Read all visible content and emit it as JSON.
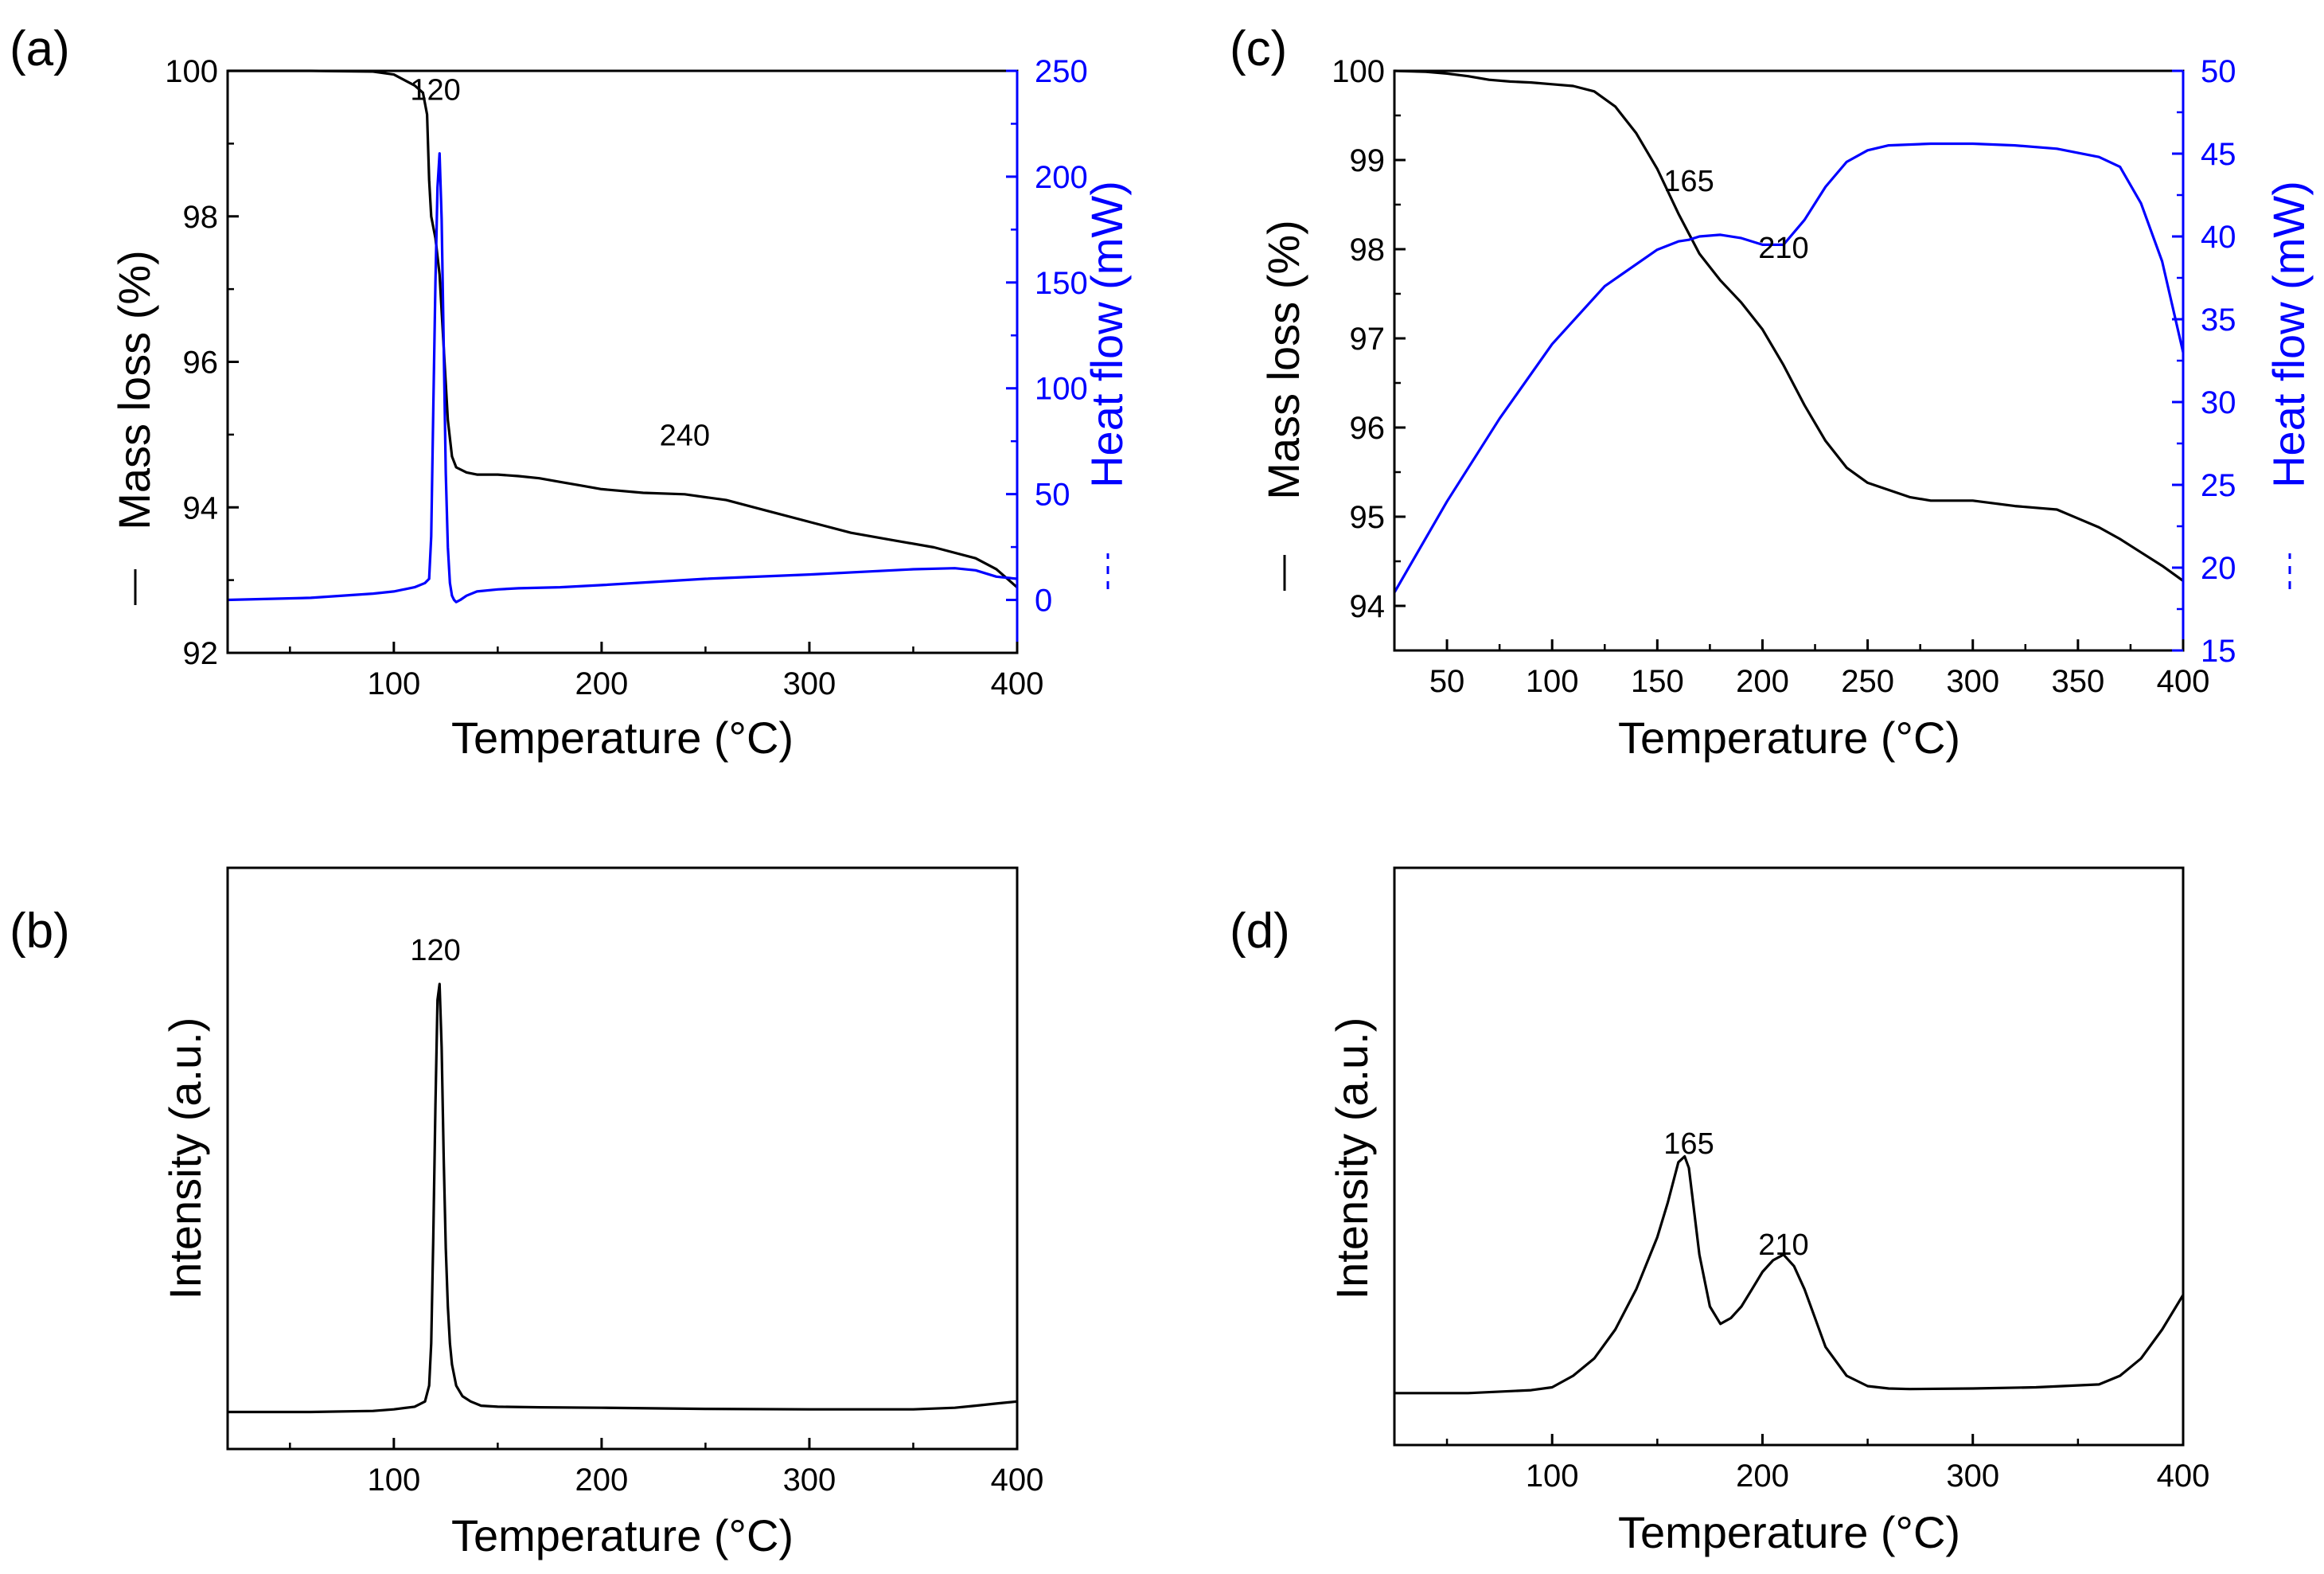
{
  "figure": {
    "panels": [
      {
        "id": "a",
        "label": "(a)",
        "annotations": [
          {
            "text": "120",
            "x": 120,
            "y": 99.6,
            "axis": "left"
          },
          {
            "text": "240",
            "x": 240,
            "y": 94.85,
            "axis": "left"
          }
        ],
        "left_axis_label": "Mass loss (%)",
        "right_axis_label": "Heat flow (mW)",
        "xlabel": "Temperature (°C)"
      },
      {
        "id": "b",
        "label": "(b)",
        "annotations": [
          {
            "text": "120",
            "x": 120,
            "y": 9.25
          }
        ],
        "ylabel": "Intensity (a.u.)",
        "xlabel": "Temperature (°C)"
      },
      {
        "id": "c",
        "label": "(c)",
        "annotations": [
          {
            "text": "165",
            "x": 165,
            "y": 98.65,
            "axis": "left"
          },
          {
            "text": "210",
            "x": 210,
            "y": 97.9,
            "axis": "left"
          }
        ],
        "left_axis_label": "Mass loss (%)",
        "right_axis_label": "Heat flow (mW)",
        "xlabel": "Temperature (°C)"
      },
      {
        "id": "d",
        "label": "(d)",
        "annotations": [
          {
            "text": "165",
            "x": 165,
            "y": 5.05
          },
          {
            "text": "210",
            "x": 210,
            "y": 3.3
          }
        ],
        "ylabel": "Intensity (a.u.)",
        "xlabel": "Temperature (°C)"
      }
    ]
  },
  "chart_data": [
    {
      "panel": "a",
      "type": "line",
      "title": "",
      "xlabel": "Temperature (°C)",
      "ylabel": "Mass loss (%)",
      "y2label": "Heat flow (mW)",
      "xlim": [
        20,
        400
      ],
      "ylim": [
        92,
        100
      ],
      "y2lim": [
        -25,
        250
      ],
      "xticks": [
        100,
        200,
        300,
        400
      ],
      "yticks": [
        92,
        94,
        96,
        98,
        100
      ],
      "y2ticks": [
        0,
        50,
        100,
        150,
        200,
        250
      ],
      "series": [
        {
          "name": "Mass loss",
          "axis": "left",
          "color": "#000000",
          "style": "solid",
          "x": [
            20,
            60,
            90,
            100,
            110,
            114,
            116,
            117,
            118,
            120,
            122,
            124,
            126,
            128,
            130,
            135,
            140,
            150,
            160,
            170,
            180,
            190,
            200,
            220,
            240,
            260,
            280,
            300,
            320,
            340,
            360,
            380,
            390,
            400
          ],
          "y": [
            100,
            100,
            99.99,
            99.95,
            99.8,
            99.7,
            99.4,
            98.5,
            98.0,
            97.7,
            97.2,
            96.2,
            95.2,
            94.7,
            94.55,
            94.48,
            94.45,
            94.45,
            94.43,
            94.4,
            94.35,
            94.3,
            94.25,
            94.2,
            94.18,
            94.1,
            93.95,
            93.8,
            93.65,
            93.55,
            93.45,
            93.3,
            93.15,
            92.9
          ]
        },
        {
          "name": "Heat flow",
          "axis": "right",
          "color": "#0000ff",
          "style": "solid",
          "x": [
            20,
            60,
            90,
            100,
            110,
            115,
            117,
            118,
            119,
            120,
            121,
            122,
            123,
            124,
            125,
            126,
            127,
            128,
            129,
            130,
            132,
            135,
            140,
            150,
            160,
            180,
            200,
            250,
            300,
            350,
            370,
            380,
            390,
            400
          ],
          "y": [
            0,
            1,
            3,
            4,
            6,
            8,
            10,
            30,
            90,
            150,
            195,
            211,
            180,
            120,
            60,
            25,
            8,
            2,
            0,
            -1,
            0,
            2,
            4,
            5,
            5.5,
            6,
            7,
            10,
            12,
            14.5,
            15,
            14,
            11,
            10
          ]
        }
      ]
    },
    {
      "panel": "b",
      "type": "line",
      "title": "",
      "xlabel": "Temperature (°C)",
      "ylabel": "Intensity (a.u.)",
      "xlim": [
        20,
        400
      ],
      "ylim": [
        0,
        11
      ],
      "xticks": [
        100,
        200,
        300,
        400
      ],
      "series": [
        {
          "name": "Intensity",
          "color": "#000000",
          "style": "solid",
          "x": [
            20,
            60,
            90,
            100,
            110,
            115,
            117,
            118,
            119,
            120,
            121,
            122,
            123,
            124,
            125,
            126,
            127,
            128,
            130,
            133,
            137,
            142,
            150,
            170,
            200,
            250,
            300,
            350,
            370,
            380,
            390,
            400
          ],
          "y": [
            0.7,
            0.7,
            0.72,
            0.75,
            0.8,
            0.9,
            1.2,
            2.0,
            4.0,
            6.5,
            8.5,
            8.8,
            7.6,
            5.5,
            3.8,
            2.7,
            2.0,
            1.6,
            1.2,
            1.0,
            0.9,
            0.82,
            0.8,
            0.79,
            0.78,
            0.76,
            0.75,
            0.75,
            0.78,
            0.82,
            0.86,
            0.9
          ]
        }
      ]
    },
    {
      "panel": "c",
      "type": "line",
      "title": "",
      "xlabel": "Temperature (°C)",
      "ylabel": "Mass loss (%)",
      "y2label": "Heat flow (mW)",
      "xlim": [
        25,
        400
      ],
      "ylim": [
        93.5,
        100
      ],
      "y2lim": [
        15,
        50
      ],
      "xticks": [
        50,
        100,
        150,
        200,
        250,
        300,
        350,
        400
      ],
      "yticks": [
        94,
        95,
        96,
        97,
        98,
        99,
        100
      ],
      "y2ticks": [
        15,
        20,
        25,
        30,
        35,
        40,
        45,
        50
      ],
      "series": [
        {
          "name": "Mass loss",
          "axis": "left",
          "color": "#000000",
          "style": "solid",
          "x": [
            25,
            40,
            50,
            60,
            70,
            80,
            90,
            100,
            110,
            120,
            130,
            140,
            150,
            160,
            170,
            180,
            190,
            200,
            210,
            220,
            230,
            240,
            250,
            260,
            270,
            280,
            290,
            300,
            310,
            320,
            330,
            340,
            350,
            360,
            370,
            380,
            390,
            400
          ],
          "y": [
            100,
            99.99,
            99.97,
            99.94,
            99.9,
            99.88,
            99.87,
            99.85,
            99.83,
            99.77,
            99.6,
            99.3,
            98.9,
            98.4,
            97.95,
            97.65,
            97.4,
            97.1,
            96.7,
            96.25,
            95.85,
            95.55,
            95.38,
            95.3,
            95.22,
            95.18,
            95.18,
            95.18,
            95.15,
            95.12,
            95.1,
            95.08,
            94.98,
            94.88,
            94.75,
            94.6,
            94.45,
            94.28
          ]
        },
        {
          "name": "Heat flow",
          "axis": "right",
          "color": "#0000ff",
          "style": "solid",
          "x": [
            25,
            50,
            75,
            100,
            125,
            150,
            160,
            165,
            170,
            180,
            190,
            200,
            210,
            220,
            230,
            240,
            250,
            260,
            280,
            300,
            320,
            340,
            360,
            370,
            380,
            390,
            400
          ],
          "y": [
            18.5,
            24,
            29,
            33.5,
            37,
            39.2,
            39.7,
            39.8,
            40.0,
            40.1,
            39.9,
            39.5,
            39.5,
            41.0,
            43.0,
            44.5,
            45.2,
            45.5,
            45.6,
            45.6,
            45.5,
            45.3,
            44.8,
            44.2,
            42.0,
            38.5,
            33.0
          ]
        }
      ]
    },
    {
      "panel": "d",
      "type": "line",
      "title": "",
      "xlabel": "Temperature (°C)",
      "ylabel": "Intensity (a.u.)",
      "xlim": [
        25,
        400
      ],
      "ylim": [
        0,
        10
      ],
      "xticks": [
        100,
        200,
        300,
        400
      ],
      "series": [
        {
          "name": "Intensity",
          "color": "#000000",
          "style": "solid",
          "x": [
            25,
            60,
            90,
            100,
            110,
            120,
            130,
            140,
            150,
            155,
            160,
            163,
            165,
            167,
            170,
            175,
            180,
            185,
            190,
            195,
            200,
            205,
            210,
            215,
            220,
            225,
            230,
            240,
            250,
            260,
            270,
            300,
            330,
            360,
            370,
            380,
            390,
            400
          ],
          "y": [
            0.9,
            0.9,
            0.95,
            1.0,
            1.2,
            1.5,
            2.0,
            2.7,
            3.6,
            4.2,
            4.9,
            5.0,
            4.8,
            4.2,
            3.3,
            2.4,
            2.1,
            2.2,
            2.4,
            2.7,
            3.0,
            3.2,
            3.3,
            3.1,
            2.7,
            2.2,
            1.7,
            1.2,
            1.02,
            0.98,
            0.97,
            0.98,
            1.0,
            1.05,
            1.2,
            1.5,
            2.0,
            2.6
          ]
        }
      ]
    }
  ]
}
